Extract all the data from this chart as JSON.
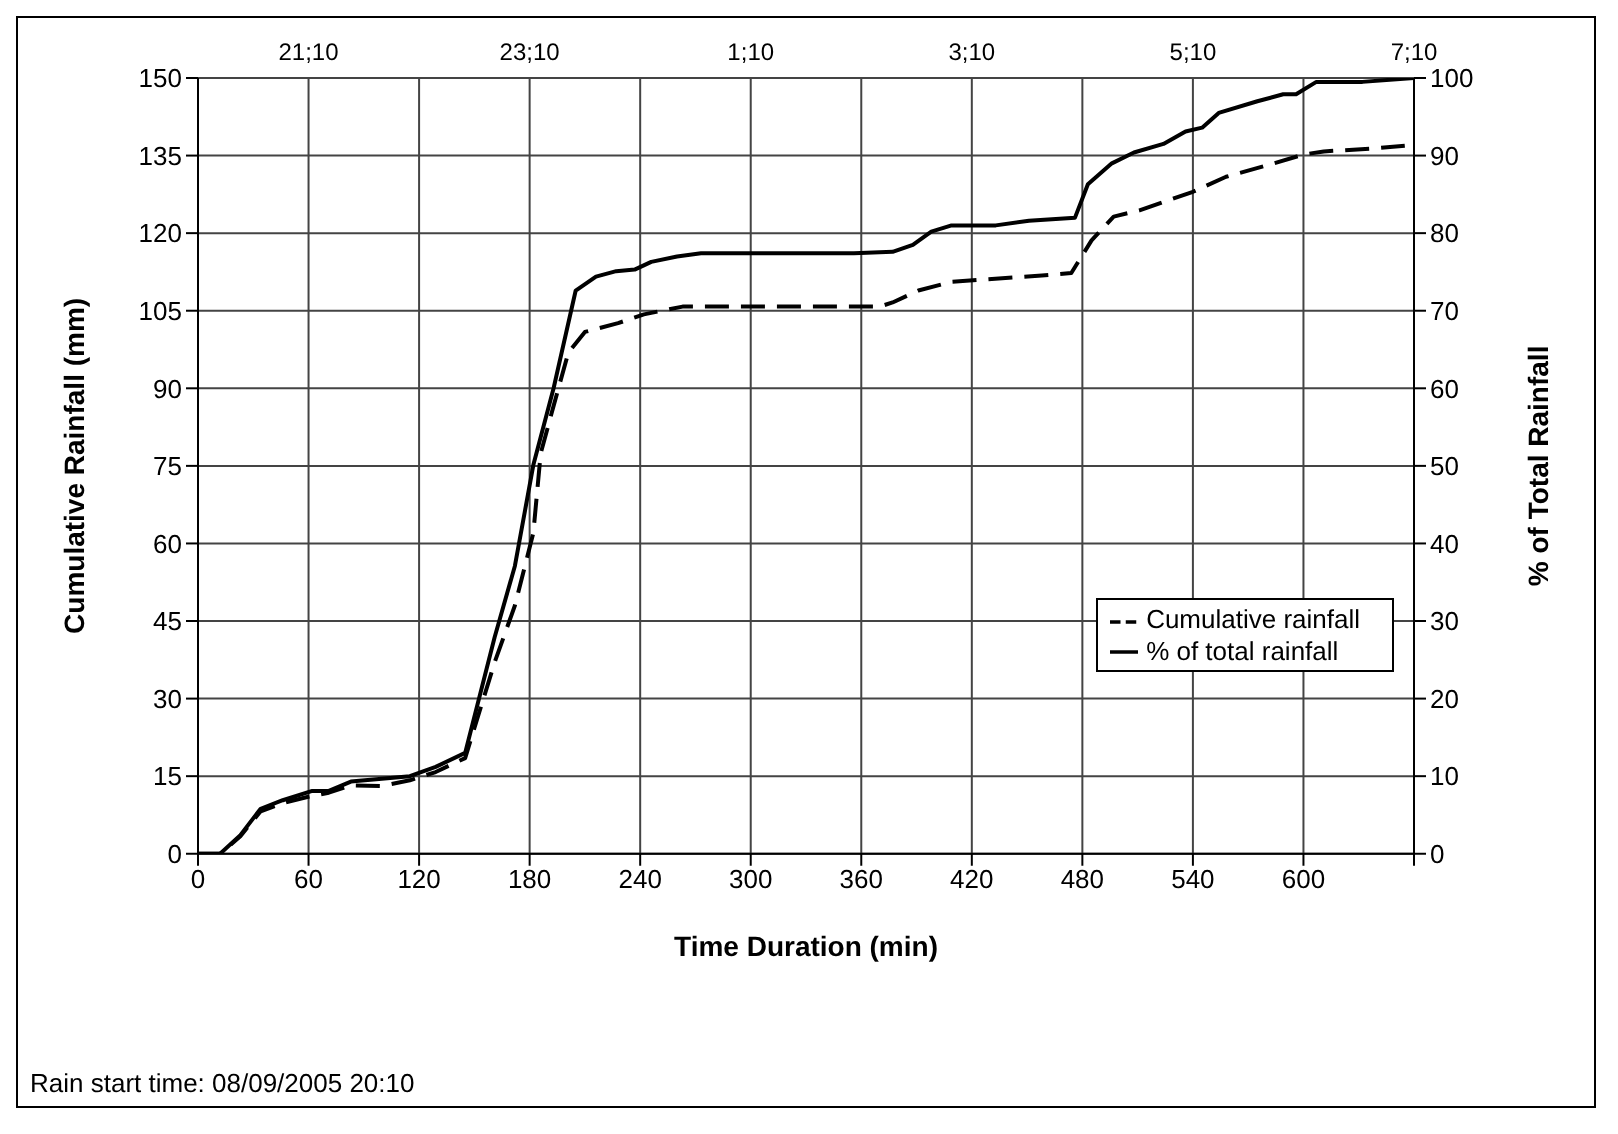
{
  "chart_data": {
    "type": "line",
    "xlabel": "Time Duration (min)",
    "ylabel": "Cumulative Rainfall (mm)",
    "y2label": "% of Total Rainfall",
    "xlim": [
      0,
      660
    ],
    "xticks": [
      0,
      60,
      120,
      180,
      240,
      300,
      360,
      420,
      480,
      540,
      600,
      {
        "value": 660,
        "label": null
      }
    ],
    "ylim": [
      0,
      150
    ],
    "yticks": [
      0,
      15,
      30,
      45,
      60,
      75,
      90,
      105,
      120,
      135,
      150
    ],
    "y2lim": [
      0,
      100
    ],
    "y2ticks": [
      0,
      10,
      20,
      30,
      40,
      50,
      60,
      70,
      80,
      90,
      100
    ],
    "grid": true,
    "legend": "right",
    "marker": "none",
    "annotations": [
      "Rain start time: 08/09/2005 20:10",
      "21;10",
      "23;10",
      "1;10",
      "3;10",
      "5;10",
      "7;10"
    ],
    "series": [
      {
        "name": "Cumulative rainfall",
        "color": "#000000",
        "line_style": "dashed",
        "x": [
          0,
          12,
          23,
          34,
          46,
          62,
          71,
          83,
          100,
          115,
          129,
          145,
          161,
          172,
          182,
          186,
          193,
          201,
          210,
          228,
          242,
          263,
          370,
          377,
          391,
          409,
          458,
          474,
          485,
          497,
          511,
          540,
          558,
          582,
          600,
          611,
          639,
          655
        ],
        "values": [
          0,
          0,
          3.4,
          8.2,
          9.8,
          11.2,
          11.8,
          13.2,
          13.1,
          14.2,
          15.8,
          18.5,
          37,
          48,
          62,
          77.4,
          86.6,
          96.9,
          100.9,
          102.6,
          104.3,
          105.8,
          105.8,
          106.6,
          108.9,
          110.6,
          111.8,
          112.3,
          118.6,
          123.2,
          124.4,
          128,
          130.9,
          133.3,
          135.2,
          135.8,
          136.4,
          136.9
        ]
      },
      {
        "name": "% of total rainfall",
        "color": "#000000",
        "line_style": "solid",
        "axis": "y2",
        "x": [
          0,
          12,
          23,
          34,
          46,
          62,
          71,
          83,
          115,
          129,
          145,
          161,
          172,
          182,
          193,
          205,
          216,
          227,
          237,
          246,
          260,
          273,
          356,
          377,
          388,
          398,
          409,
          433,
          451,
          476,
          483,
          496,
          508,
          524,
          536,
          545,
          554,
          575,
          589,
          596,
          607,
          632,
          660
        ],
        "values": [
          0,
          0,
          2.4,
          5.8,
          6.9,
          8.1,
          8.1,
          9.3,
          10,
          11.2,
          13,
          27.9,
          37.1,
          50.1,
          60,
          72.6,
          74.4,
          75.1,
          75.3,
          76.3,
          77,
          77.4,
          77.4,
          77.6,
          78.5,
          80.2,
          81,
          81,
          81.6,
          82,
          86.3,
          89,
          90.4,
          91.5,
          93.1,
          93.6,
          95.5,
          97,
          97.9,
          97.9,
          99.5,
          99.5,
          100
        ]
      }
    ]
  }
}
